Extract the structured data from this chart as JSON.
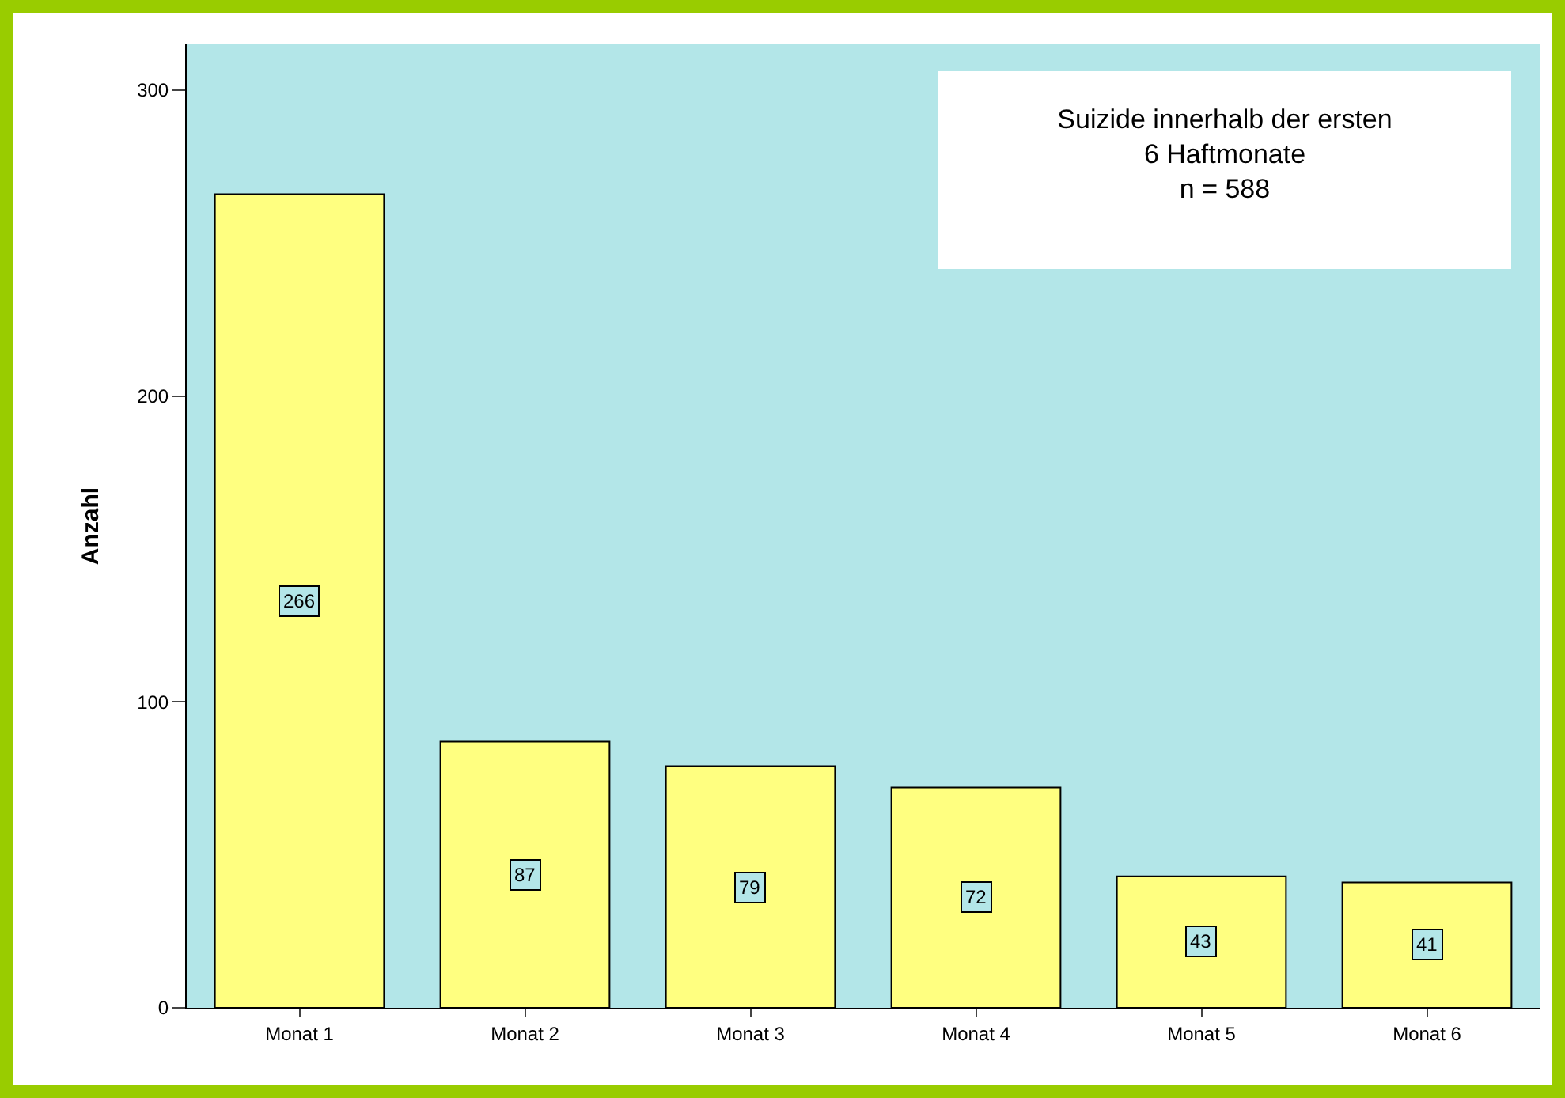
{
  "chart_data": {
    "type": "bar",
    "ylabel": "Anzahl",
    "categories": [
      "Monat 1",
      "Monat 2",
      "Monat 3",
      "Monat 4",
      "Monat 5",
      "Monat 6"
    ],
    "values": [
      266,
      87,
      79,
      72,
      43,
      41
    ],
    "color": "#ffff80",
    "ylim": [
      0,
      315
    ],
    "yticks": [
      0,
      100,
      200,
      300
    ],
    "grid": false,
    "data_labels": true,
    "annotations": [
      "Suizide innerhalb der ersten\n6 Haftmonate\nn = 588"
    ]
  }
}
